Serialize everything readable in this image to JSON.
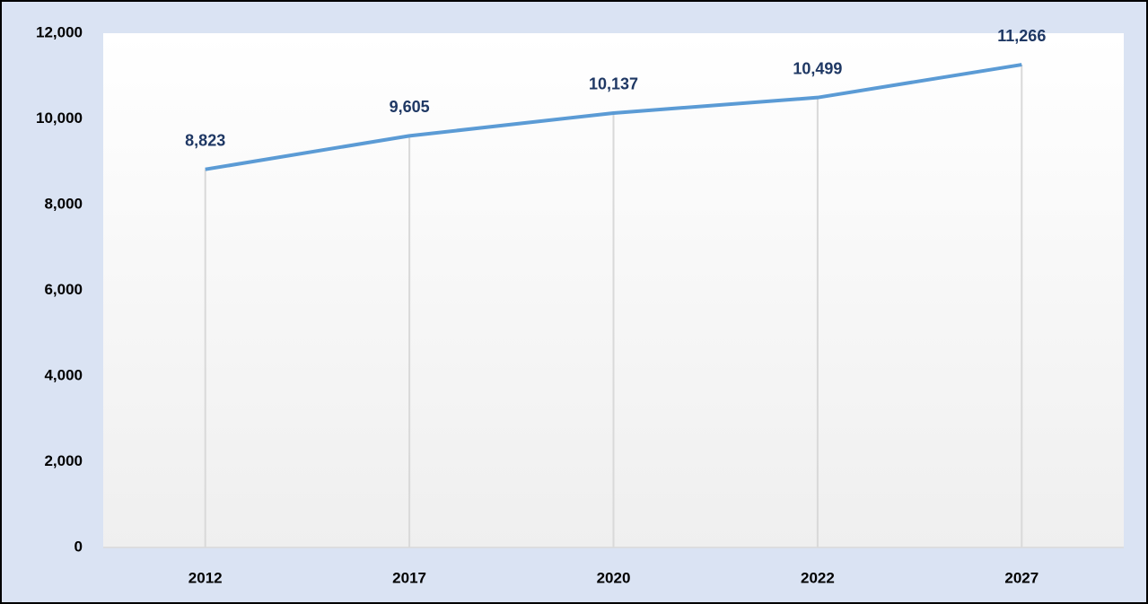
{
  "chart_data": {
    "type": "line",
    "categories": [
      "2012",
      "2017",
      "2020",
      "2022",
      "2027"
    ],
    "values": [
      8823,
      9605,
      10137,
      10499,
      11266
    ],
    "value_labels": [
      "8,823",
      "9,605",
      "10,137",
      "10,499",
      "11,266"
    ],
    "color": "#5b9bd5",
    "ylim": [
      0,
      12000
    ],
    "yticks": [
      0,
      {
        "value": 2000,
        "label": "2,000"
      },
      {
        "value": 4000,
        "label": "4,000"
      },
      {
        "value": 6000,
        "label": "6,000"
      },
      {
        "value": 8000,
        "label": "8,000"
      },
      {
        "value": 10000,
        "label": "10,000"
      },
      {
        "value": 12000,
        "label": "12,000"
      }
    ],
    "drop_lines": true
  }
}
